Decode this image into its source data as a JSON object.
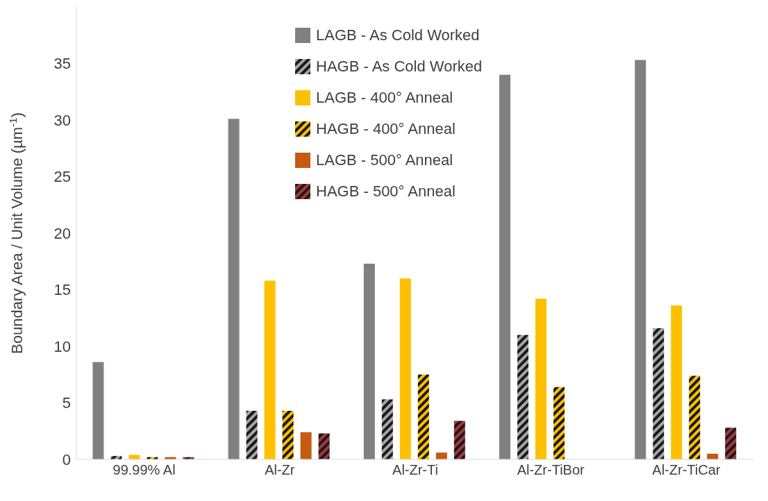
{
  "chart_data": {
    "type": "bar",
    "ylabel": "Boundary Area / Unit Volume (µm$^{-1}$)",
    "categories": [
      "99.99% Al",
      "Al-Zr",
      "Al-Zr-Ti",
      "Al-Zr-TiBor",
      "Al-Zr-TiCar"
    ],
    "series": [
      {
        "name": "LAGB - As Cold Worked",
        "color": "#808080",
        "values": [
          8.6,
          30.1,
          17.3,
          34.0,
          35.3
        ]
      },
      {
        "name": "HAGB - As Cold Worked",
        "color": "#1a1a1a",
        "values": [
          0.3,
          4.3,
          5.3,
          11.0,
          11.6
        ]
      },
      {
        "name": "LAGB - 400° Anneal",
        "color": "#ffc000",
        "values": [
          0.4,
          15.8,
          16.0,
          14.2,
          13.6
        ]
      },
      {
        "name": "HAGB - 400° Anneal",
        "color": "#ffc000",
        "values": [
          0.2,
          4.3,
          7.5,
          6.4,
          7.4
        ]
      },
      {
        "name": "LAGB - 500° Anneal",
        "color": "#c55a11",
        "values": [
          0.2,
          2.4,
          0.6,
          null,
          0.5
        ]
      },
      {
        "name": "HAGB - 500° Anneal",
        "color": "#a5373c",
        "values": [
          0.2,
          2.3,
          3.4,
          null,
          2.8
        ]
      }
    ],
    "ylim": [
      0,
      40
    ],
    "yticks": [
      0,
      5,
      10,
      15,
      20,
      25,
      30,
      35
    ],
    "grid": false,
    "legend": "top"
  }
}
